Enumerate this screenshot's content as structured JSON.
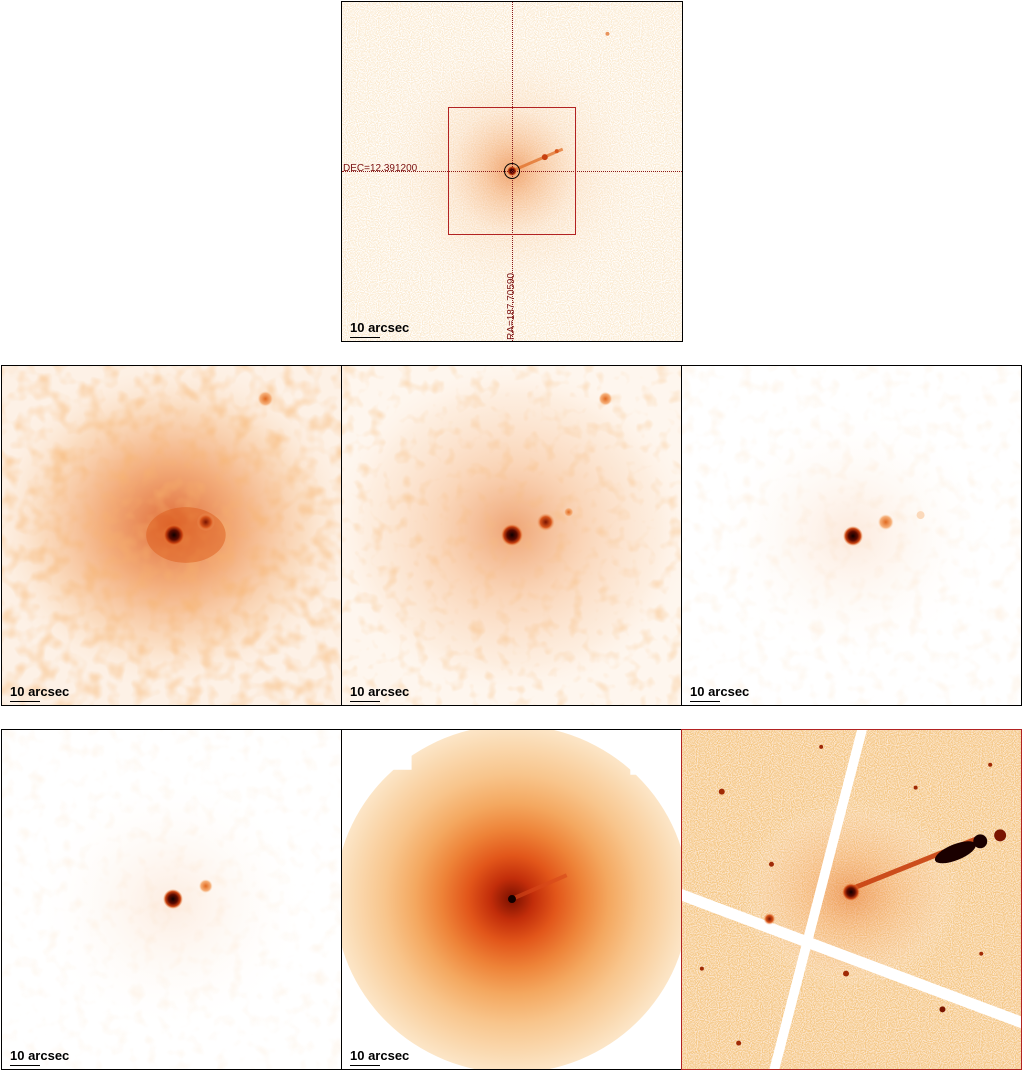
{
  "top_panel": {
    "scale_label": "10 arcsec",
    "dec_label": "DEC=12.391200",
    "ra_label": "RA=187.70590",
    "crosshair_color": "#8b1a1a",
    "box_color": "#b22222"
  },
  "row2": [
    {
      "scale_label": "10 arcsec"
    },
    {
      "scale_label": "10 arcsec"
    },
    {
      "scale_label": "10 arcsec"
    }
  ],
  "row3": [
    {
      "scale_label": "10 arcsec"
    },
    {
      "scale_label": "10 arcsec"
    },
    {
      "scale_label": ""
    }
  ],
  "colors": {
    "colormap_dark": "#1a0000",
    "colormap_mid": "#e0561a",
    "colormap_light": "#fde6cc"
  }
}
